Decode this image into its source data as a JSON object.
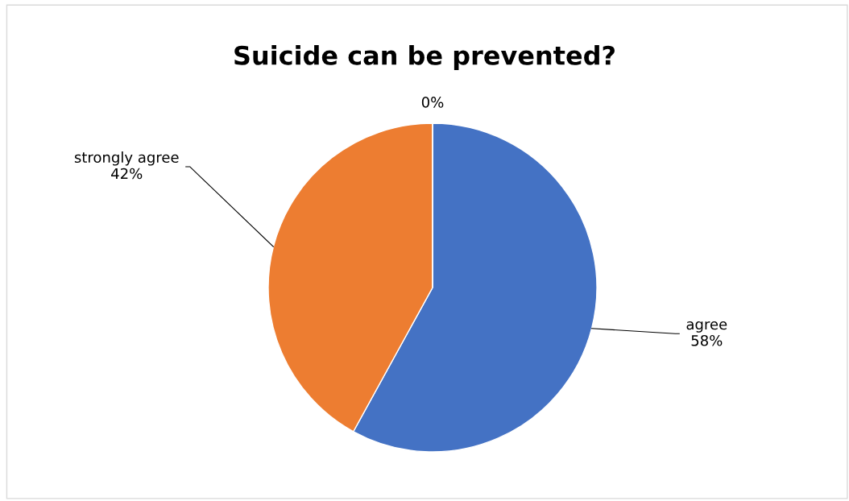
{
  "chart_data": {
    "type": "pie",
    "title": "Suicide can be prevented?",
    "categories": [
      "agree",
      "strongly agree",
      null
    ],
    "values": [
      58,
      42,
      0
    ],
    "colors": [
      "#4472c4",
      "#ed7d31",
      "#a5a5a5"
    ],
    "value_labels": [
      "58%",
      "42%",
      "0%"
    ]
  }
}
